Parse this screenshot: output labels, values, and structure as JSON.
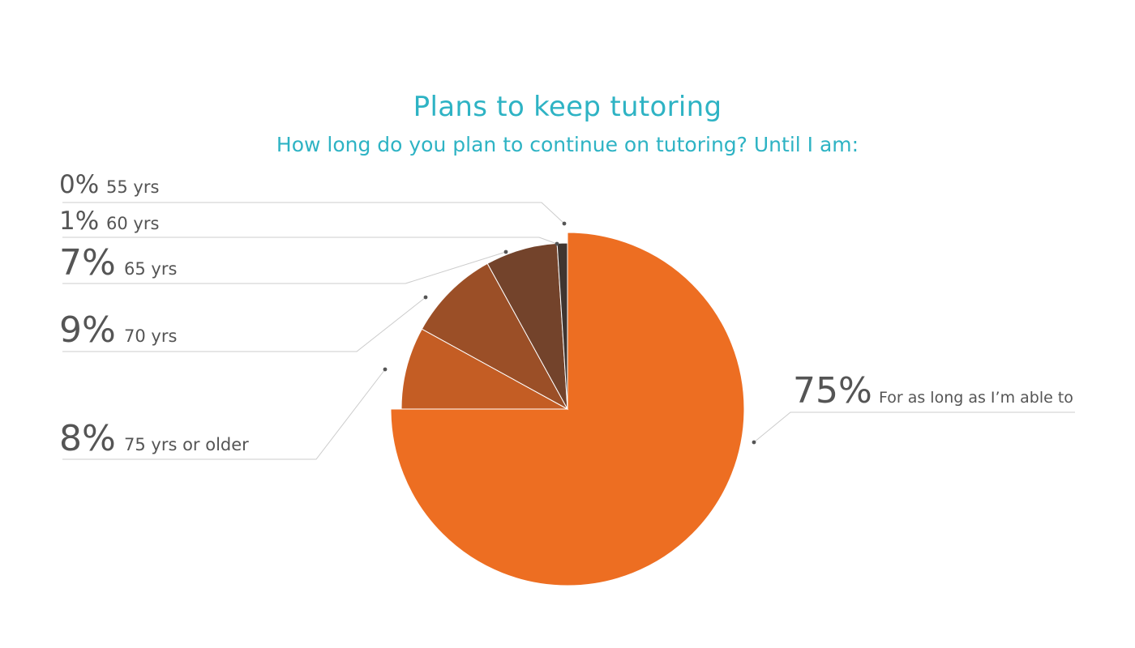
{
  "chart_data": {
    "type": "pie",
    "title": "Plans to keep tutoring",
    "subtitle": "How long do you plan to continue on tutoring? Until I am:",
    "slices": [
      {
        "label": "For as long as I’m able to",
        "value": 75,
        "percent_label": "75%",
        "color": "#ed6e22"
      },
      {
        "label": "75 yrs or older",
        "value": 8,
        "percent_label": "8%",
        "color": "#c45d24"
      },
      {
        "label": "70 yrs",
        "value": 9,
        "percent_label": "9%",
        "color": "#9b4f27"
      },
      {
        "label": "65 yrs",
        "value": 7,
        "percent_label": "7%",
        "color": "#73432b"
      },
      {
        "label": "60 yrs",
        "value": 1,
        "percent_label": "1%",
        "color": "#3f3530"
      },
      {
        "label": "55 yrs",
        "value": 0,
        "percent_label": "0%",
        "color": "#2e2a28"
      }
    ]
  }
}
